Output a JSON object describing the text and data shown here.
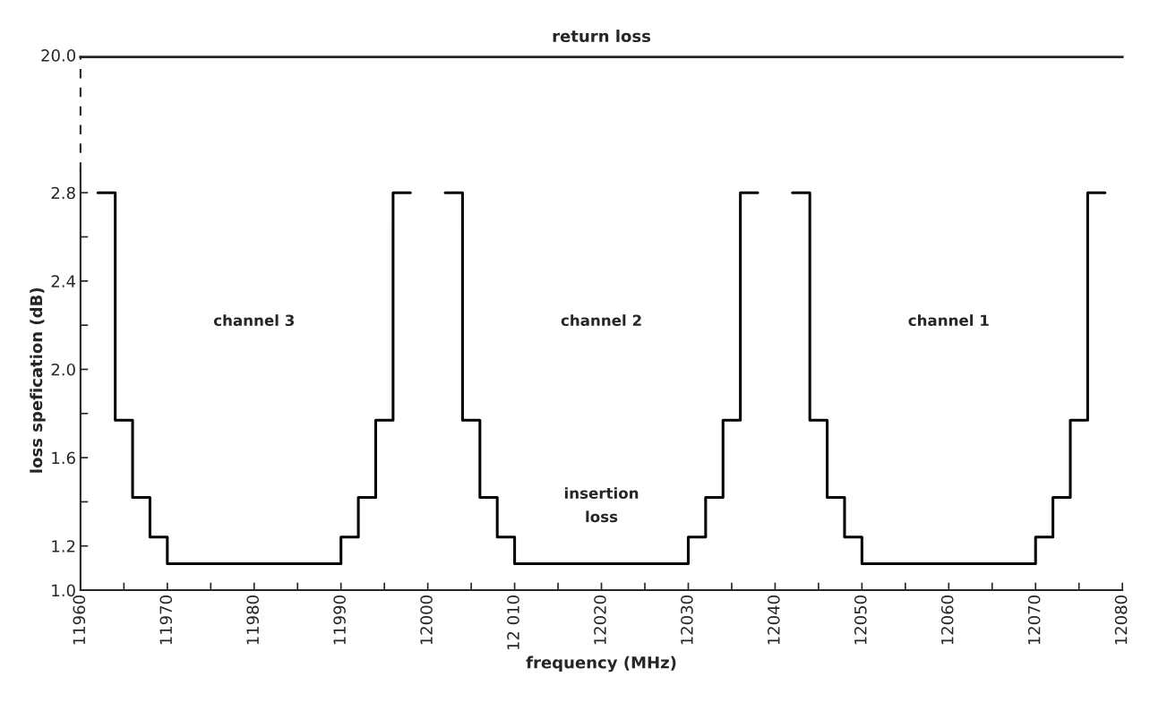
{
  "chart_data": [
    {
      "type": "other",
      "title": "return loss",
      "annotations": [
        "20.0"
      ]
    },
    {
      "type": "step",
      "xlabel": "frequency (MHz)",
      "ylabel": "loss spefication (dB)",
      "xlim": [
        11960,
        12080
      ],
      "ylim": [
        1.0,
        2.9
      ],
      "xticks": [
        11960,
        {
          "value": 11965,
          "label": null
        },
        11970,
        {
          "value": 11975,
          "label": null
        },
        11980,
        {
          "value": 11985,
          "label": null
        },
        11990,
        {
          "value": 11995,
          "label": null
        },
        12000,
        {
          "value": 12005,
          "label": null
        },
        {
          "value": 12010,
          "label": "12 010"
        },
        {
          "value": 12015,
          "label": null
        },
        12020,
        {
          "value": 12025,
          "label": null
        },
        12030,
        {
          "value": 12035,
          "label": null
        },
        12040,
        {
          "value": 12045,
          "label": null
        },
        12050,
        {
          "value": 12055,
          "label": null
        },
        12060,
        {
          "value": 12065,
          "label": null
        },
        12070,
        {
          "value": 12075,
          "label": null
        },
        12080
      ],
      "yticks": [
        {
          "value": 1.0,
          "label": "1.0"
        },
        1.2,
        {
          "value": 1.4,
          "label": null
        },
        1.6,
        {
          "value": 1.8,
          "label": null
        },
        {
          "value": 2.0,
          "label": "2.0"
        },
        {
          "value": 2.2,
          "label": null
        },
        2.4,
        {
          "value": 2.6,
          "label": null
        },
        2.8
      ],
      "series": [
        {
          "color": "#000000",
          "x": [
            11962,
            11964,
            11966,
            11968,
            11970,
            11990,
            11992,
            11994,
            11996,
            11998
          ],
          "values": [
            2.8,
            1.77,
            1.42,
            1.24,
            1.12,
            1.24,
            1.42,
            1.77,
            2.8,
            2.8
          ]
        },
        {
          "color": "#000000",
          "x": [
            12002,
            12004,
            12006,
            12008,
            12010,
            12030,
            12032,
            12034,
            12036,
            12038
          ],
          "values": [
            2.8,
            1.77,
            1.42,
            1.24,
            1.12,
            1.24,
            1.42,
            1.77,
            2.8,
            2.8
          ]
        },
        {
          "color": "#000000",
          "x": [
            12042,
            12044,
            12046,
            12048,
            12050,
            12070,
            12072,
            12074,
            12076,
            12078
          ],
          "values": [
            2.8,
            1.77,
            1.42,
            1.24,
            1.12,
            1.24,
            1.42,
            1.77,
            2.8,
            2.8
          ]
        }
      ],
      "annotations": [
        "channel 3",
        "channel 2",
        "channel 1",
        "insertion\nloss"
      ]
    }
  ]
}
